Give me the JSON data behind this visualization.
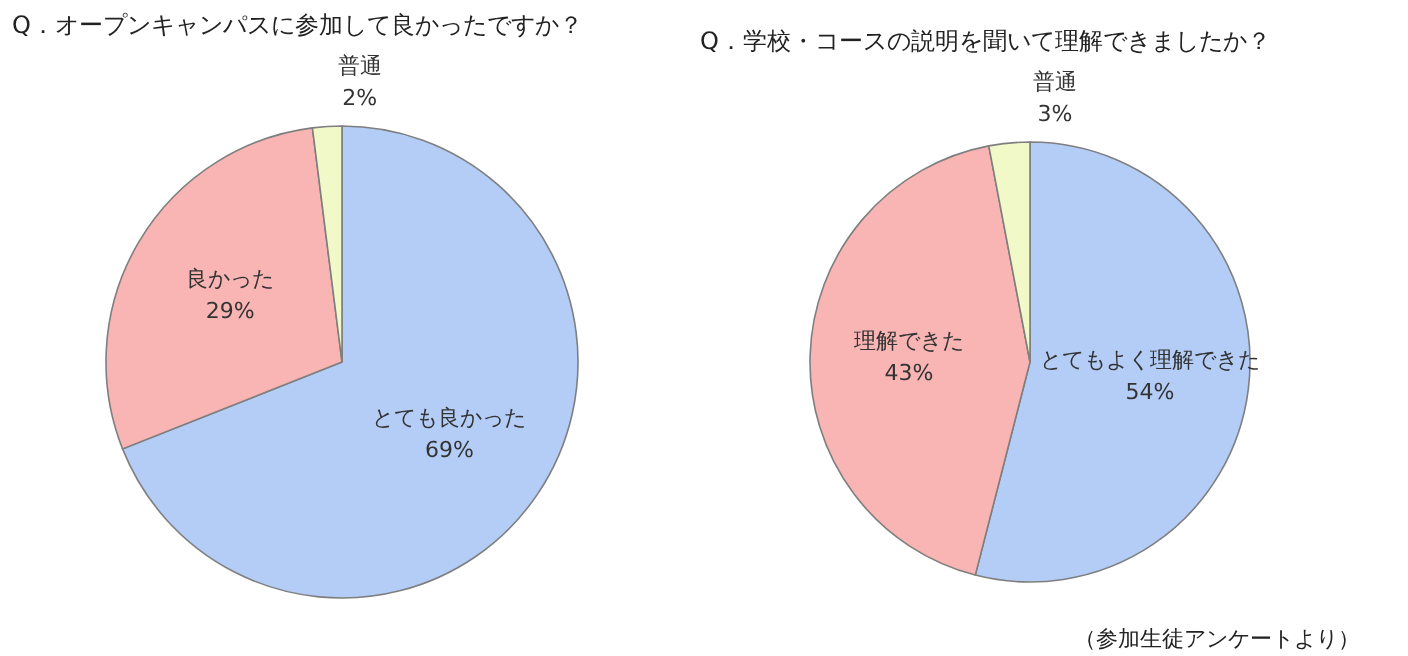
{
  "chart_data": [
    {
      "type": "pie",
      "title": "Q．オープンキャンパスに参加して良かったですか？",
      "categories": [
        "とても良かった",
        "良かった",
        "普通"
      ],
      "values": [
        69,
        29,
        2
      ],
      "value_labels": [
        "69%",
        "29%",
        "2%"
      ],
      "colors": [
        "#b4cdf7",
        "#f9b4b4",
        "#f2f9c8"
      ]
    },
    {
      "type": "pie",
      "title": "Q．学校・コースの説明を聞いて理解できましたか？",
      "categories": [
        "とてもよく理解できた",
        "理解できた",
        "普通"
      ],
      "values": [
        54,
        43,
        3
      ],
      "value_labels": [
        "54%",
        "43%",
        "3%"
      ],
      "colors": [
        "#b4cdf7",
        "#f9b4b4",
        "#f2f9c8"
      ],
      "annotations": [
        "（参加生徒アンケートより）"
      ]
    }
  ]
}
